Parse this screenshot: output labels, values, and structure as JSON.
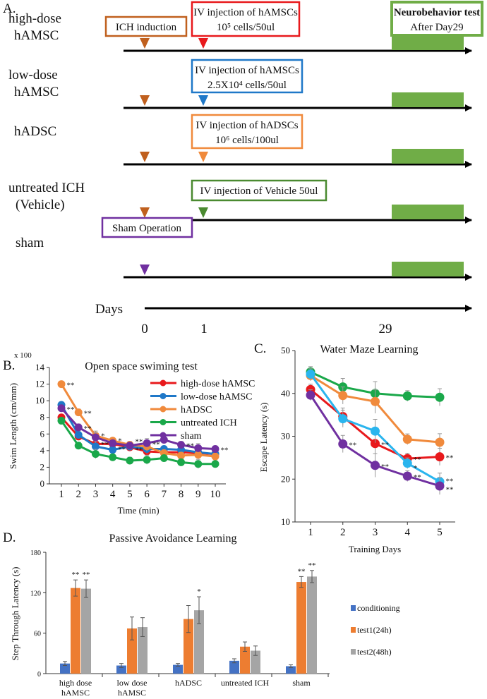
{
  "panel_a": {
    "label": "A.",
    "rows": [
      {
        "name": [
          "high-dose",
          "hAMSC"
        ]
      },
      {
        "name": [
          "low-dose",
          "hAMSC"
        ]
      },
      {
        "name": [
          "hADSC"
        ]
      },
      {
        "name": [
          "untreated ICH",
          "(Vehicle)"
        ]
      },
      {
        "name": [
          "sham"
        ]
      }
    ],
    "boxes": {
      "ich": "ICH induction",
      "high_l1": "IV injection of hAMSCs",
      "high_l2": "10⁵ cells/50ul",
      "low_l1": "IV injection of hAMSCs",
      "low_l2": "2.5X10⁴ cells/50ul",
      "adsc_l1": "IV injection of hADSCs",
      "adsc_l2": "10⁶ cells/100ul",
      "vehicle": "IV injection of Vehicle 50ul",
      "sham": "Sham Operation",
      "neuro_l1": "Neurobehavior test",
      "neuro_l2": "After  Day29"
    },
    "days_label": "Days",
    "day_ticks": [
      "0",
      "1",
      "29"
    ]
  },
  "colors": {
    "red": "#e8191c",
    "blue": "#1f78c8",
    "orange": "#f08a3c",
    "green": "#1aa84a",
    "purple": "#7030a0",
    "cyan": "#2ab5ee",
    "brown": "#c0601e",
    "bar_blue": "#4472c4",
    "bar_orange": "#ed7d31",
    "bar_grey": "#a5a5a5"
  },
  "chart_data": [
    {
      "panel": "B.",
      "type": "line",
      "title": "Open space swiming test",
      "scale_note": "x 100",
      "xlabel": "Time (min)",
      "ylabel": "Swim Length (cm/mm)",
      "x": [
        1,
        2,
        3,
        4,
        5,
        6,
        7,
        8,
        9,
        10
      ],
      "ylim": [
        0,
        14
      ],
      "yticks": [
        "0",
        "2",
        "4",
        "6",
        "8",
        "10",
        "12",
        "14"
      ],
      "legend": "top-right",
      "series": [
        {
          "name": "high-dose hAMSC",
          "color": "#e8191c",
          "values": [
            8.0,
            5.7,
            4.8,
            4.8,
            4.4,
            3.9,
            3.8,
            3.8,
            3.7,
            3.6
          ]
        },
        {
          "name": "low-dose hAMSC",
          "color": "#1f78c8",
          "values": [
            9.5,
            5.9,
            4.5,
            4.1,
            4.5,
            4.2,
            4.2,
            4.1,
            3.8,
            3.6
          ]
        },
        {
          "name": "hADSC",
          "color": "#f08a3c",
          "values": [
            12.0,
            8.6,
            5.8,
            5.2,
            4.7,
            4.5,
            3.7,
            3.4,
            3.5,
            3.3
          ]
        },
        {
          "name": "untreated ICH",
          "color": "#1aa84a",
          "values": [
            7.6,
            4.6,
            3.6,
            3.2,
            2.8,
            2.9,
            3.1,
            2.6,
            2.4,
            2.4
          ]
        },
        {
          "name": "sham",
          "color": "#7030a0",
          "values": [
            9.1,
            6.8,
            5.6,
            4.9,
            4.6,
            4.9,
            5.3,
            4.7,
            4.3,
            4.2
          ]
        }
      ],
      "annotations": [
        {
          "x": 1,
          "y": 12.0,
          "text": "**"
        },
        {
          "x": 1,
          "y": 9.1,
          "text": "**"
        },
        {
          "x": 2,
          "y": 8.6,
          "text": "**"
        },
        {
          "x": 2,
          "y": 6.8,
          "text": "**"
        },
        {
          "x": 3,
          "y": 5.9,
          "text": "*"
        },
        {
          "x": 3,
          "y": 5.4,
          "text": "**"
        },
        {
          "x": 4,
          "y": 5.3,
          "text": "*"
        },
        {
          "x": 4,
          "y": 4.8,
          "text": "**"
        },
        {
          "x": 5,
          "y": 5.2,
          "text": "**"
        },
        {
          "x": 5,
          "y": 4.7,
          "text": "**"
        },
        {
          "x": 6,
          "y": 4.9,
          "text": "**"
        },
        {
          "x": 8,
          "y": 4.7,
          "text": "**"
        },
        {
          "x": 10,
          "y": 4.2,
          "text": "**"
        }
      ]
    },
    {
      "panel": "C.",
      "type": "line",
      "title": "Water Maze Learning",
      "xlabel": "Training Days",
      "ylabel": "Escape Latency (s)",
      "x": [
        1,
        2,
        3,
        4,
        5
      ],
      "ylim": [
        10,
        50
      ],
      "yticks": [
        "10",
        "20",
        "30",
        "40",
        "50"
      ],
      "series": [
        {
          "name": "untreated ICH",
          "color": "#1aa84a",
          "values": [
            45.0,
            41.5,
            40.0,
            39.4,
            39.1
          ]
        },
        {
          "name": "hADSC",
          "color": "#f08a3c",
          "values": [
            44.2,
            39.5,
            38.1,
            29.3,
            28.6
          ]
        },
        {
          "name": "high-dose hAMSC",
          "color": "#e8191c",
          "values": [
            40.9,
            34.6,
            28.3,
            24.8,
            25.2
          ]
        },
        {
          "name": "low-dose hAMSC",
          "color": "#2ab5ee",
          "values": [
            44.5,
            34.1,
            31.2,
            23.7,
            19.4
          ]
        },
        {
          "name": "sham",
          "color": "#7030a0",
          "values": [
            39.6,
            28.2,
            23.2,
            20.7,
            18.4
          ]
        }
      ],
      "annotations": [
        {
          "x": 2,
          "y": 28.2,
          "text": "**"
        },
        {
          "x": 3,
          "y": 28.3,
          "text": "**"
        },
        {
          "x": 3,
          "y": 23.2,
          "text": "**"
        },
        {
          "x": 4,
          "y": 24.8,
          "text": "**"
        },
        {
          "x": 4,
          "y": 23.7,
          "text": "*"
        },
        {
          "x": 4,
          "y": 20.7,
          "text": "**"
        },
        {
          "x": 5,
          "y": 25.2,
          "text": "**"
        },
        {
          "x": 5,
          "y": 19.8,
          "text": "**"
        },
        {
          "x": 5,
          "y": 18.4,
          "text": "**"
        }
      ]
    },
    {
      "panel": "D.",
      "type": "bar",
      "title": "Passive Avoidance Learning",
      "ylabel": "Step Through Latency (s)",
      "ylim": [
        0,
        180
      ],
      "yticks": [
        "0",
        "60",
        "120",
        "180"
      ],
      "categories": [
        [
          "high dose",
          "hAMSC"
        ],
        [
          "low dose",
          "hAMSC"
        ],
        [
          "hADSC"
        ],
        [
          "untreated ICH"
        ],
        [
          "sham"
        ]
      ],
      "legend": "right",
      "series": [
        {
          "name": "conditioning",
          "color": "#4472c4",
          "values": [
            15,
            12,
            13,
            19,
            11
          ],
          "errors": [
            3,
            3,
            2,
            3,
            2
          ],
          "stars": [
            "",
            "",
            "",
            "",
            ""
          ]
        },
        {
          "name": "test1(24h)",
          "color": "#ed7d31",
          "values": [
            127,
            67,
            81,
            40,
            136
          ],
          "errors": [
            12,
            17,
            20,
            7,
            8
          ],
          "stars": [
            "**",
            "",
            "",
            "",
            "**"
          ]
        },
        {
          "name": "test2(48h)",
          "color": "#a5a5a5",
          "values": [
            126,
            69,
            94,
            34,
            144
          ],
          "errors": [
            13,
            14,
            20,
            7,
            9
          ],
          "stars": [
            "**",
            "",
            "*",
            "",
            "**"
          ]
        }
      ]
    }
  ]
}
